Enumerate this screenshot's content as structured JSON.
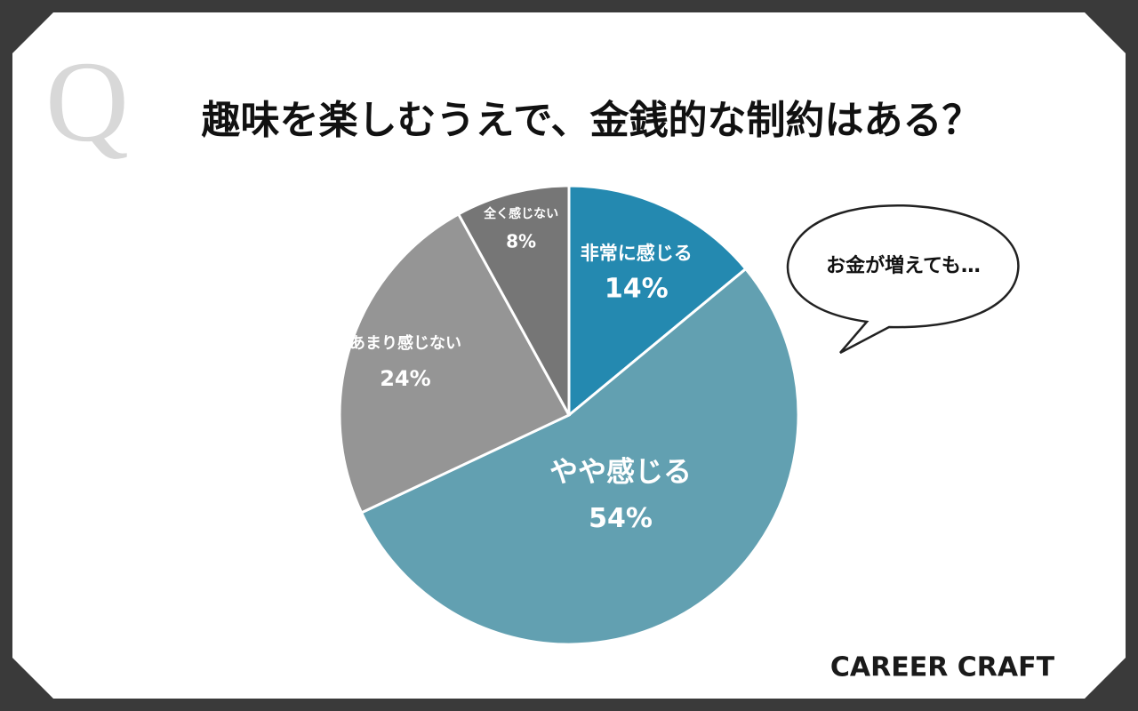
{
  "chart_data": {
    "type": "pie",
    "title": "趣味を楽しむうえで、金銭的な制約はある？",
    "mark": "Q",
    "annotation": "お金が増えても…",
    "brand": "CAREER CRAFT",
    "categories": [
      "非常に感じる",
      "やや感じる",
      "あまり感じない",
      "全く感じない"
    ],
    "values": [
      14,
      54,
      24,
      8
    ],
    "value_labels": [
      "14%",
      "54%",
      "24%",
      "8%"
    ],
    "colors": [
      "#2489b0",
      "#62a0b1",
      "#959595",
      "#767676"
    ]
  }
}
